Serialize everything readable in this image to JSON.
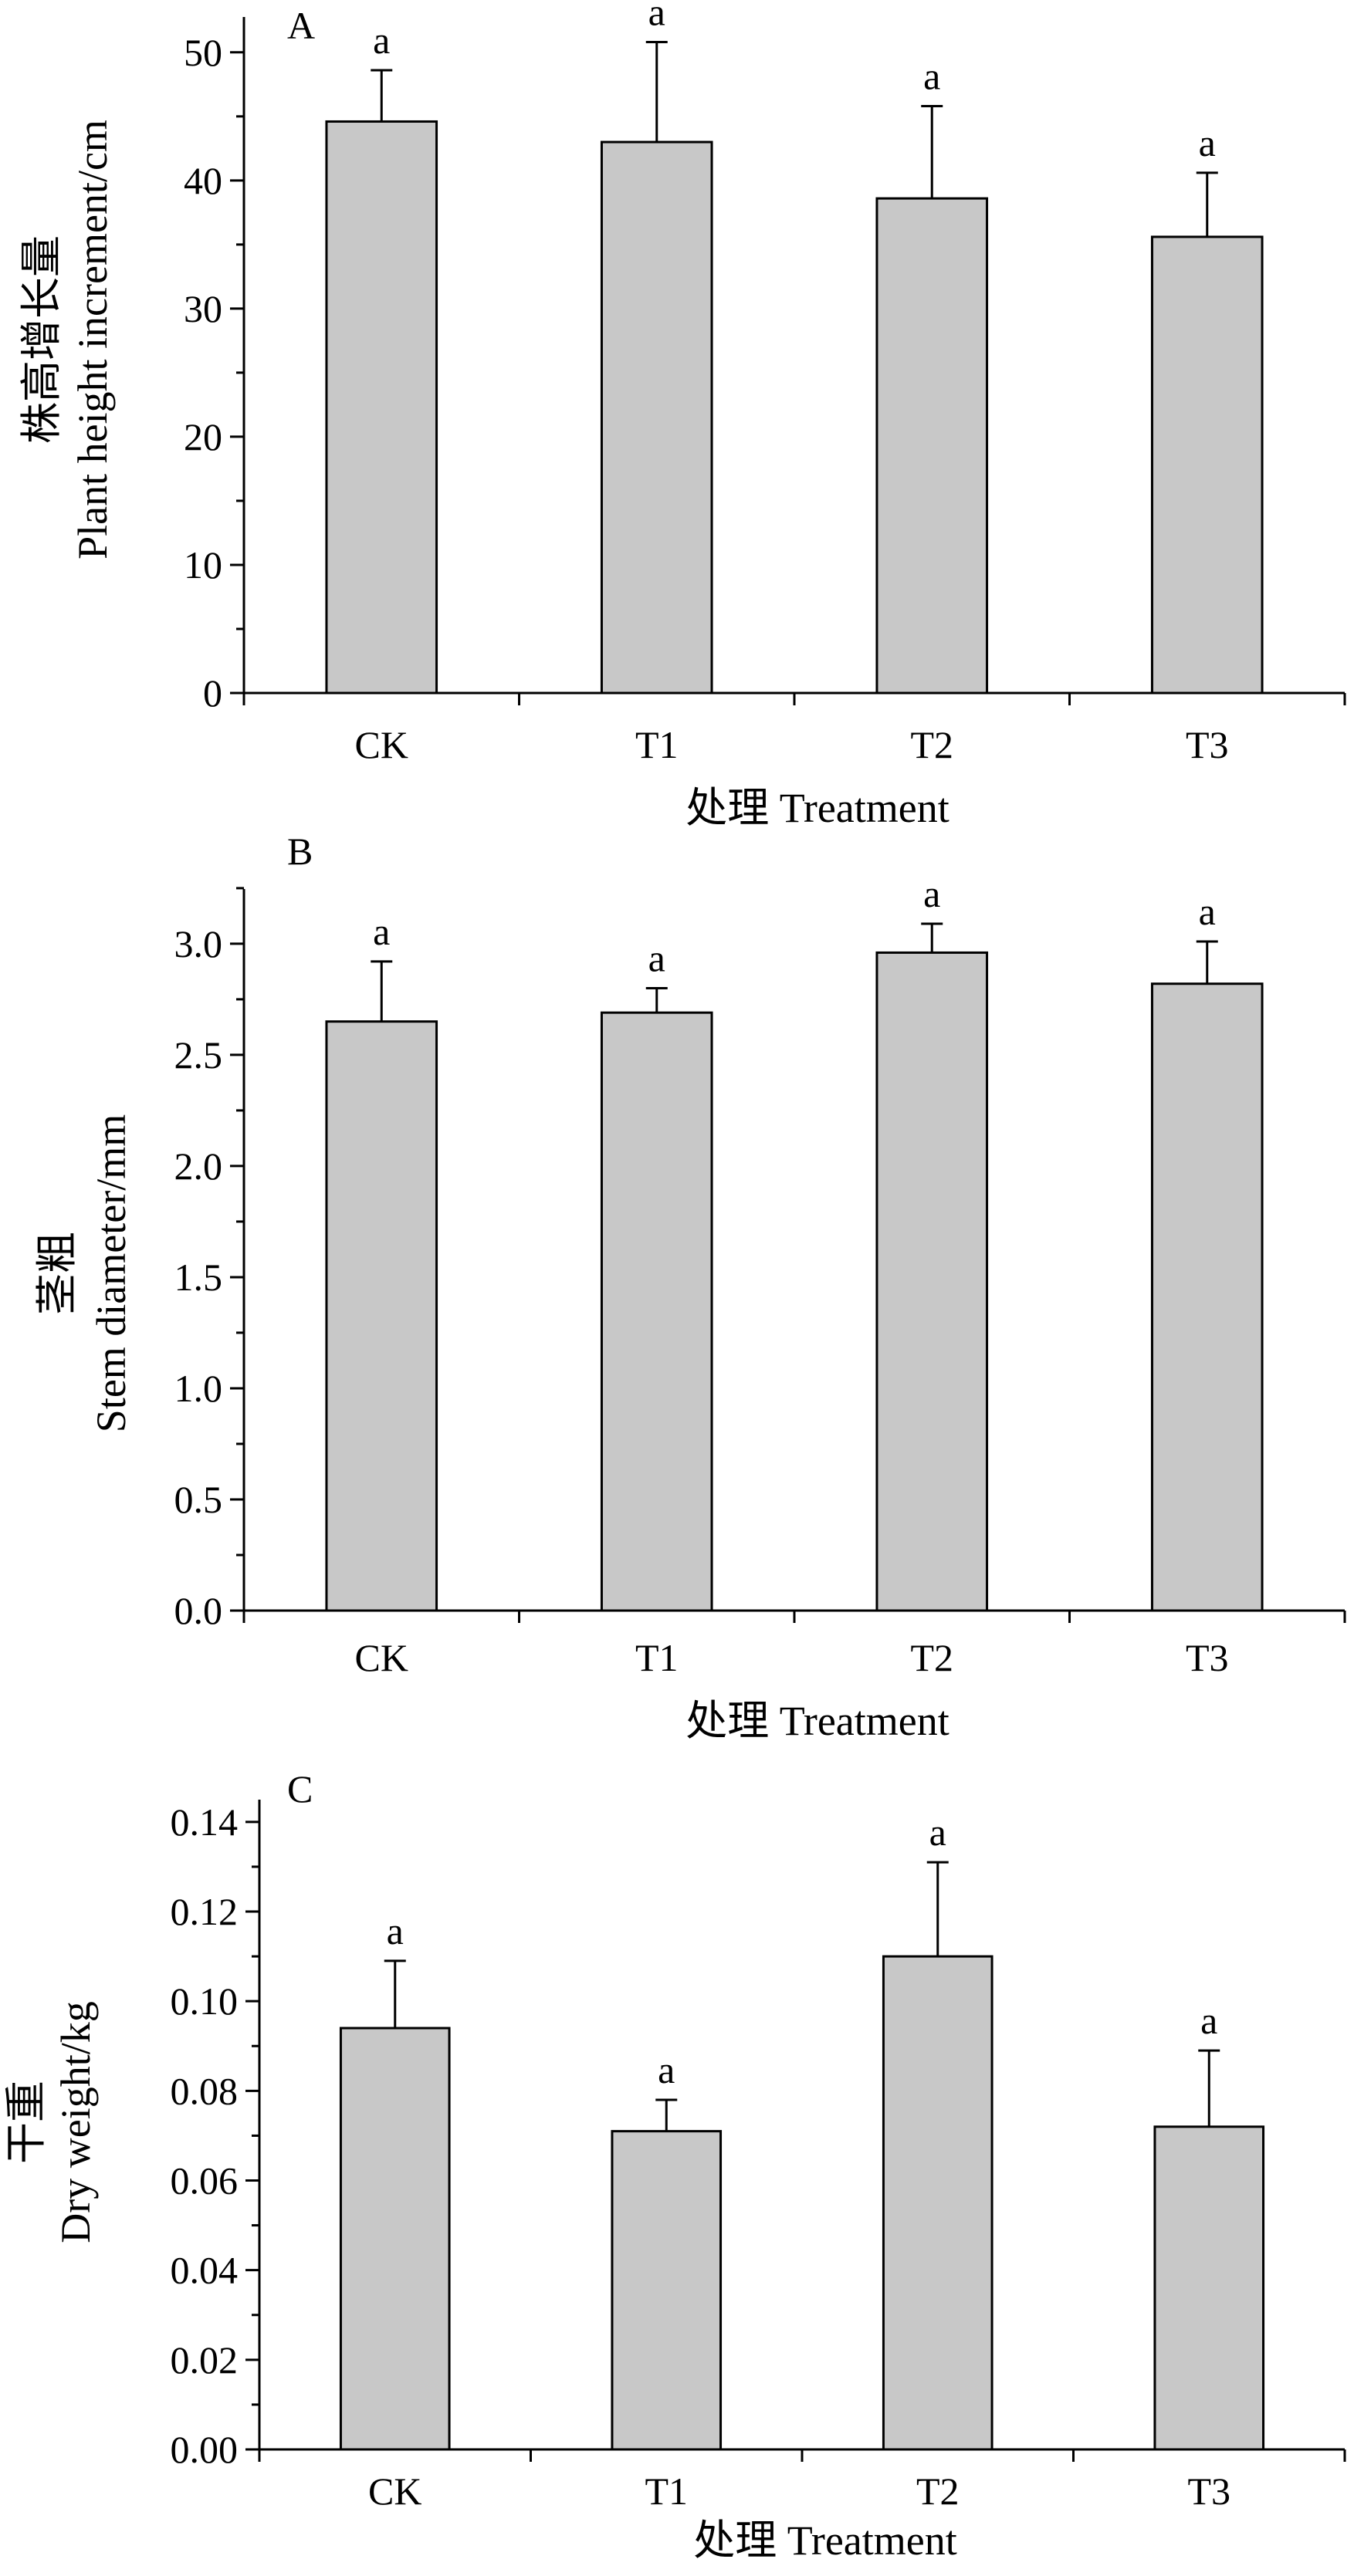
{
  "chart_data": [
    {
      "type": "bar",
      "panel": "A",
      "categories": [
        "CK",
        "T1",
        "T2",
        "T3"
      ],
      "values": [
        44.6,
        43.0,
        38.6,
        35.6
      ],
      "errors": [
        4.0,
        7.8,
        7.2,
        5.0
      ],
      "significance": [
        "a",
        "a",
        "a",
        "a"
      ],
      "xlabel": "处理 Treatment",
      "ylabel_cn": "株高增长量",
      "ylabel_en": "Plant height increment/cm",
      "ylim": [
        0,
        53
      ],
      "yticks": [
        0,
        10,
        20,
        30,
        40,
        50
      ],
      "ytick_labels": [
        "0",
        "10",
        "20",
        "30",
        "40",
        "50"
      ]
    },
    {
      "type": "bar",
      "panel": "B",
      "categories": [
        "CK",
        "T1",
        "T2",
        "T3"
      ],
      "values": [
        2.65,
        2.69,
        2.96,
        2.82
      ],
      "errors": [
        0.27,
        0.11,
        0.13,
        0.19
      ],
      "significance": [
        "a",
        "a",
        "a",
        "a"
      ],
      "xlabel": "处理 Treatment",
      "ylabel_cn": "茎粗",
      "ylabel_en": "Stem diameter/mm",
      "ylim": [
        0,
        3.26
      ],
      "yticks": [
        0,
        0.5,
        1,
        1.5,
        2,
        2.5,
        3
      ],
      "ytick_labels": [
        "0.0",
        "0.5",
        "1.0",
        "1.5",
        "2.0",
        "2.5",
        "3.0"
      ]
    },
    {
      "type": "bar",
      "panel": "C",
      "categories": [
        "CK",
        "T1",
        "T2",
        "T3"
      ],
      "values": [
        0.094,
        0.071,
        0.11,
        0.072
      ],
      "errors": [
        0.015,
        0.007,
        0.021,
        0.017
      ],
      "significance": [
        "a",
        "a",
        "a",
        "a"
      ],
      "xlabel": "处理 Treatment",
      "ylabel_cn": "干重",
      "ylabel_en": "Dry weight/kg",
      "ylim": [
        0,
        0.146
      ],
      "yticks": [
        0,
        0.02,
        0.04,
        0.06,
        0.08,
        0.1,
        0.12,
        0.14
      ],
      "ytick_labels": [
        "0.00",
        "0.02",
        "0.04",
        "0.06",
        "0.08",
        "0.10",
        "0.12",
        "0.14"
      ]
    }
  ]
}
